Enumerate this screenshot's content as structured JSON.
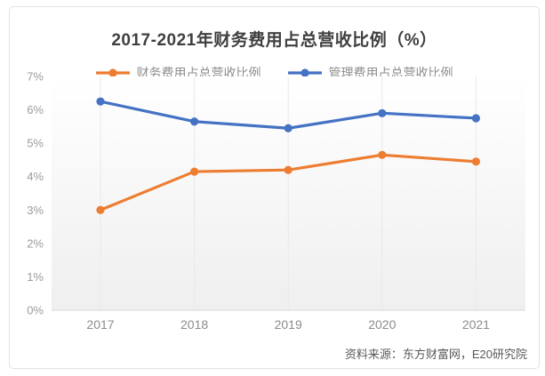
{
  "title": "2017-2021年财务费用占总营收比例（%）",
  "source_note": "资料来源：东方财富网，E20研究院",
  "colors": {
    "financial_series": "#ED7D31",
    "management_series": "#4472C4",
    "gridline": "#e9e9e9",
    "axis_line": "#d9d9d9",
    "plot_bg_top": "#ffffff",
    "plot_bg_bottom": "#efefef",
    "title_text": "#3f3f3f",
    "tick_text": "#9b9b9b",
    "legend_text": "#8e8e8e",
    "source_text": "#595959"
  },
  "chart_data": {
    "type": "line",
    "title": "2017-2021年财务费用占总营收比例（%）",
    "categories": [
      "2017",
      "2018",
      "2019",
      "2020",
      "2021"
    ],
    "series": [
      {
        "name": "财务费用占总营收比例",
        "color": "#ED7D31",
        "values": [
          3.0,
          4.15,
          4.2,
          4.65,
          4.45
        ]
      },
      {
        "name": "管理费用占总营收比例",
        "color": "#4472C4",
        "values": [
          6.25,
          5.65,
          5.45,
          5.9,
          5.75
        ]
      }
    ],
    "xlabel": "",
    "ylabel": "",
    "ylim": [
      0,
      7
    ],
    "ytick_step": 1,
    "ytick_labels": [
      "0%",
      "1%",
      "2%",
      "3%",
      "4%",
      "5%",
      "6%",
      "7%"
    ],
    "grid": "vertical-only",
    "legend_position": "top",
    "marker": "circle",
    "source": "资料来源：东方财富网，E20研究院"
  }
}
